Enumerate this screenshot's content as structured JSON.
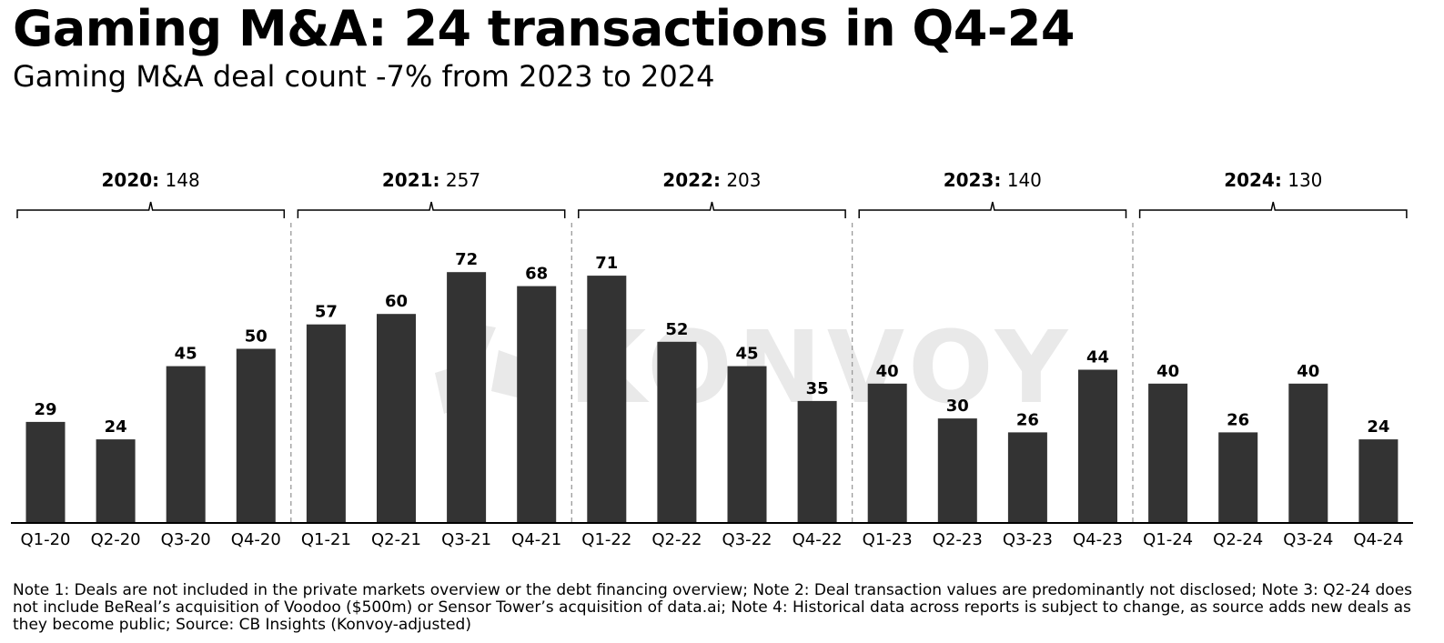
{
  "title": "Gaming M&A: 24 transactions in Q4-24",
  "subtitle": "Gaming M&A deal count -7% from 2023 to 2024",
  "watermark": "KONVOY",
  "colors": {
    "bar": "#333333",
    "divider": "#9a9a9a",
    "watermark": "#e9e9e9",
    "axis": "#000000"
  },
  "chart_data": {
    "type": "bar",
    "categories": [
      "Q1-20",
      "Q2-20",
      "Q3-20",
      "Q4-20",
      "Q1-21",
      "Q2-21",
      "Q3-21",
      "Q4-21",
      "Q1-22",
      "Q2-22",
      "Q3-22",
      "Q4-22",
      "Q1-23",
      "Q2-23",
      "Q3-23",
      "Q4-23",
      "Q1-24",
      "Q2-24",
      "Q3-24",
      "Q4-24"
    ],
    "values": [
      29,
      24,
      45,
      50,
      57,
      60,
      72,
      68,
      71,
      52,
      45,
      35,
      40,
      30,
      26,
      44,
      40,
      26,
      40,
      24
    ],
    "groups": [
      {
        "label": "2020:",
        "total": "148"
      },
      {
        "label": "2021:",
        "total": "257"
      },
      {
        "label": "2022:",
        "total": "203"
      },
      {
        "label": "2023:",
        "total": "140"
      },
      {
        "label": "2024:",
        "total": "130"
      }
    ],
    "ylim": [
      0,
      80
    ],
    "grid": false
  },
  "note": "Note 1: Deals are not included in the private markets overview or the debt financing overview; Note 2: Deal transaction values are predominantly not disclosed; Note 3: Q2-24 does not include BeReal’s acquisition of Voodoo ($500m) or Sensor Tower’s acquisition of data.ai; Note 4: Historical data across reports is subject to change, as source adds new deals as they become public; Source: CB Insights (Konvoy-adjusted)"
}
